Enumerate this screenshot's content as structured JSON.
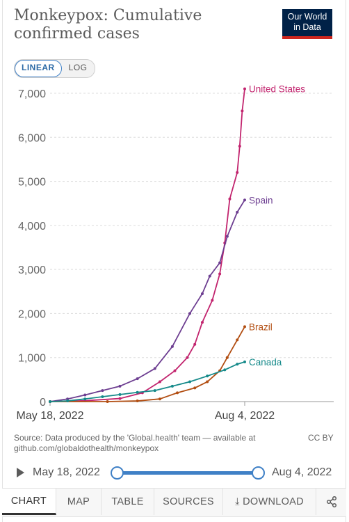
{
  "header": {
    "title": "Monkeypox: Cumulative confirmed cases",
    "logo_line1": "Our World",
    "logo_line2": "in Data"
  },
  "scale_toggle": {
    "linear": "LINEAR",
    "log": "LOG",
    "selected": "LINEAR"
  },
  "chart_data": {
    "type": "line",
    "title": "Monkeypox: Cumulative confirmed cases",
    "xlabel": "",
    "ylabel": "",
    "x_start": "May 18, 2022",
    "x_end": "Aug 4, 2022",
    "xticks": [
      "May 18, 2022",
      "Aug 4, 2022"
    ],
    "yticks": [
      "0",
      "1,000",
      "2,000",
      "3,000",
      "4,000",
      "5,000",
      "6,000",
      "7,000"
    ],
    "ylim": [
      0,
      7000
    ],
    "grid": "horizontal dashed",
    "series": [
      {
        "name": "United States",
        "color": "#c2246e",
        "points": [
          [
            "May 18, 2022",
            0
          ],
          [
            "Jun 1, 2022",
            20
          ],
          [
            "Jun 15, 2022",
            70
          ],
          [
            "Jun 24, 2022",
            200
          ],
          [
            "Jul 1, 2022",
            450
          ],
          [
            "Jul 7, 2022",
            700
          ],
          [
            "Jul 12, 2022",
            1000
          ],
          [
            "Jul 15, 2022",
            1300
          ],
          [
            "Jul 18, 2022",
            1800
          ],
          [
            "Jul 22, 2022",
            2300
          ],
          [
            "Jul 25, 2022",
            2900
          ],
          [
            "Jul 27, 2022",
            3600
          ],
          [
            "Jul 29, 2022",
            4600
          ],
          [
            "Aug 1, 2022",
            5200
          ],
          [
            "Aug 2, 2022",
            5800
          ],
          [
            "Aug 3, 2022",
            6600
          ],
          [
            "Aug 4, 2022",
            7100
          ]
        ]
      },
      {
        "name": "Spain",
        "color": "#6d3e91",
        "points": [
          [
            "May 18, 2022",
            0
          ],
          [
            "May 25, 2022",
            60
          ],
          [
            "Jun 1, 2022",
            150
          ],
          [
            "Jun 8, 2022",
            250
          ],
          [
            "Jun 15, 2022",
            350
          ],
          [
            "Jun 22, 2022",
            520
          ],
          [
            "Jun 29, 2022",
            750
          ],
          [
            "Jul 6, 2022",
            1250
          ],
          [
            "Jul 13, 2022",
            2000
          ],
          [
            "Jul 18, 2022",
            2450
          ],
          [
            "Jul 21, 2022",
            2850
          ],
          [
            "Jul 25, 2022",
            3150
          ],
          [
            "Jul 28, 2022",
            3750
          ],
          [
            "Aug 1, 2022",
            4300
          ],
          [
            "Aug 4, 2022",
            4577
          ]
        ]
      },
      {
        "name": "Brazil",
        "color": "#b24e12",
        "points": [
          [
            "May 18, 2022",
            0
          ],
          [
            "Jun 10, 2022",
            0
          ],
          [
            "Jun 22, 2022",
            15
          ],
          [
            "Jul 1, 2022",
            60
          ],
          [
            "Jul 8, 2022",
            200
          ],
          [
            "Jul 15, 2022",
            310
          ],
          [
            "Jul 20, 2022",
            450
          ],
          [
            "Jul 25, 2022",
            700
          ],
          [
            "Jul 28, 2022",
            1000
          ],
          [
            "Aug 1, 2022",
            1400
          ],
          [
            "Aug 4, 2022",
            1700
          ]
        ]
      },
      {
        "name": "Canada",
        "color": "#158a8a",
        "points": [
          [
            "May 18, 2022",
            0
          ],
          [
            "May 25, 2022",
            15
          ],
          [
            "Jun 1, 2022",
            60
          ],
          [
            "Jun 8, 2022",
            110
          ],
          [
            "Jun 15, 2022",
            160
          ],
          [
            "Jun 22, 2022",
            210
          ],
          [
            "Jun 29, 2022",
            250
          ],
          [
            "Jul 6, 2022",
            350
          ],
          [
            "Jul 13, 2022",
            450
          ],
          [
            "Jul 20, 2022",
            580
          ],
          [
            "Jul 27, 2022",
            720
          ],
          [
            "Aug 1, 2022",
            850
          ],
          [
            "Aug 4, 2022",
            900
          ]
        ]
      }
    ]
  },
  "footer": {
    "source": "Source: Data produced by the 'Global.health' team — available at github.com/globaldothealth/monkeypox",
    "license": "CC BY"
  },
  "timeline": {
    "start": "May 18, 2022",
    "end": "Aug 4, 2022"
  },
  "tabs": [
    "CHART",
    "MAP",
    "TABLE",
    "SOURCES",
    "DOWNLOAD",
    ""
  ]
}
